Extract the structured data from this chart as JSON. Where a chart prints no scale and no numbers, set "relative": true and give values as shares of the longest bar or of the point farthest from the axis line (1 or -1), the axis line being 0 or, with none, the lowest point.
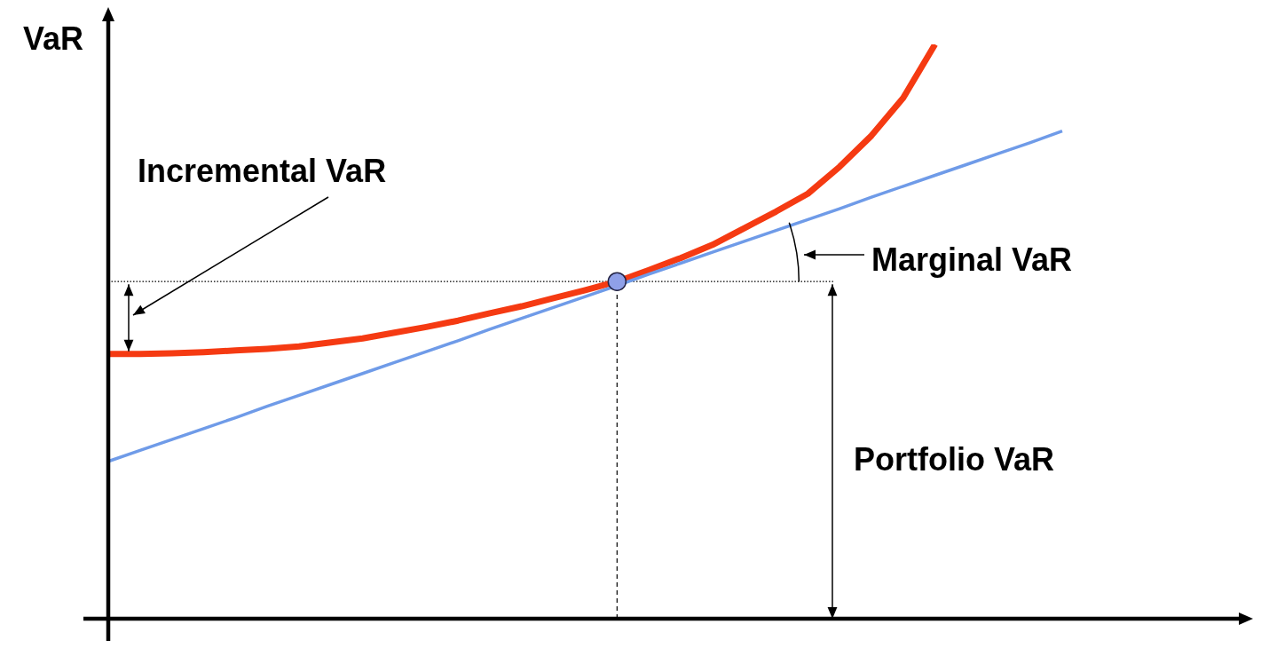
{
  "chart_data": {
    "type": "line",
    "ylabel": "VaR",
    "relative": true,
    "categories": [
      null,
      null,
      null,
      null,
      null,
      null,
      null,
      null,
      null,
      null,
      null,
      null,
      null,
      null,
      null,
      null,
      null,
      null,
      null,
      null,
      null,
      null,
      null,
      null,
      null,
      null,
      null,
      null,
      null,
      null,
      null
    ],
    "series": [
      {
        "color": "#f53a12",
        "values": [
          0.461,
          0.461,
          0.462,
          0.464,
          0.467,
          0.47,
          0.474,
          0.481,
          0.488,
          0.498,
          0.508,
          0.519,
          0.532,
          0.544,
          0.558,
          0.572,
          0.587,
          0.607,
          0.628,
          0.651,
          0.68,
          0.709,
          0.74,
          0.787,
          0.841,
          0.907,
          1,
          null,
          null,
          null,
          null
        ]
      },
      {
        "color": "#6f9be8",
        "values": [
          0.274,
          0.293,
          0.312,
          0.331,
          0.35,
          0.37,
          0.389,
          0.408,
          0.427,
          0.446,
          0.465,
          0.484,
          0.504,
          0.523,
          0.542,
          0.561,
          0.58,
          0.6,
          0.619,
          0.638,
          0.657,
          0.676,
          0.695,
          0.714,
          0.734,
          0.753,
          0.772,
          0.791,
          0.81,
          0.829,
          0.849
        ]
      }
    ],
    "ref_lines": [
      {
        "axis": "y",
        "value": 0.587,
        "line_style": "dotted"
      }
    ],
    "annotations": [
      "Incremental VaR",
      "Marginal VaR",
      "Portfolio VaR"
    ],
    "legend": false
  }
}
